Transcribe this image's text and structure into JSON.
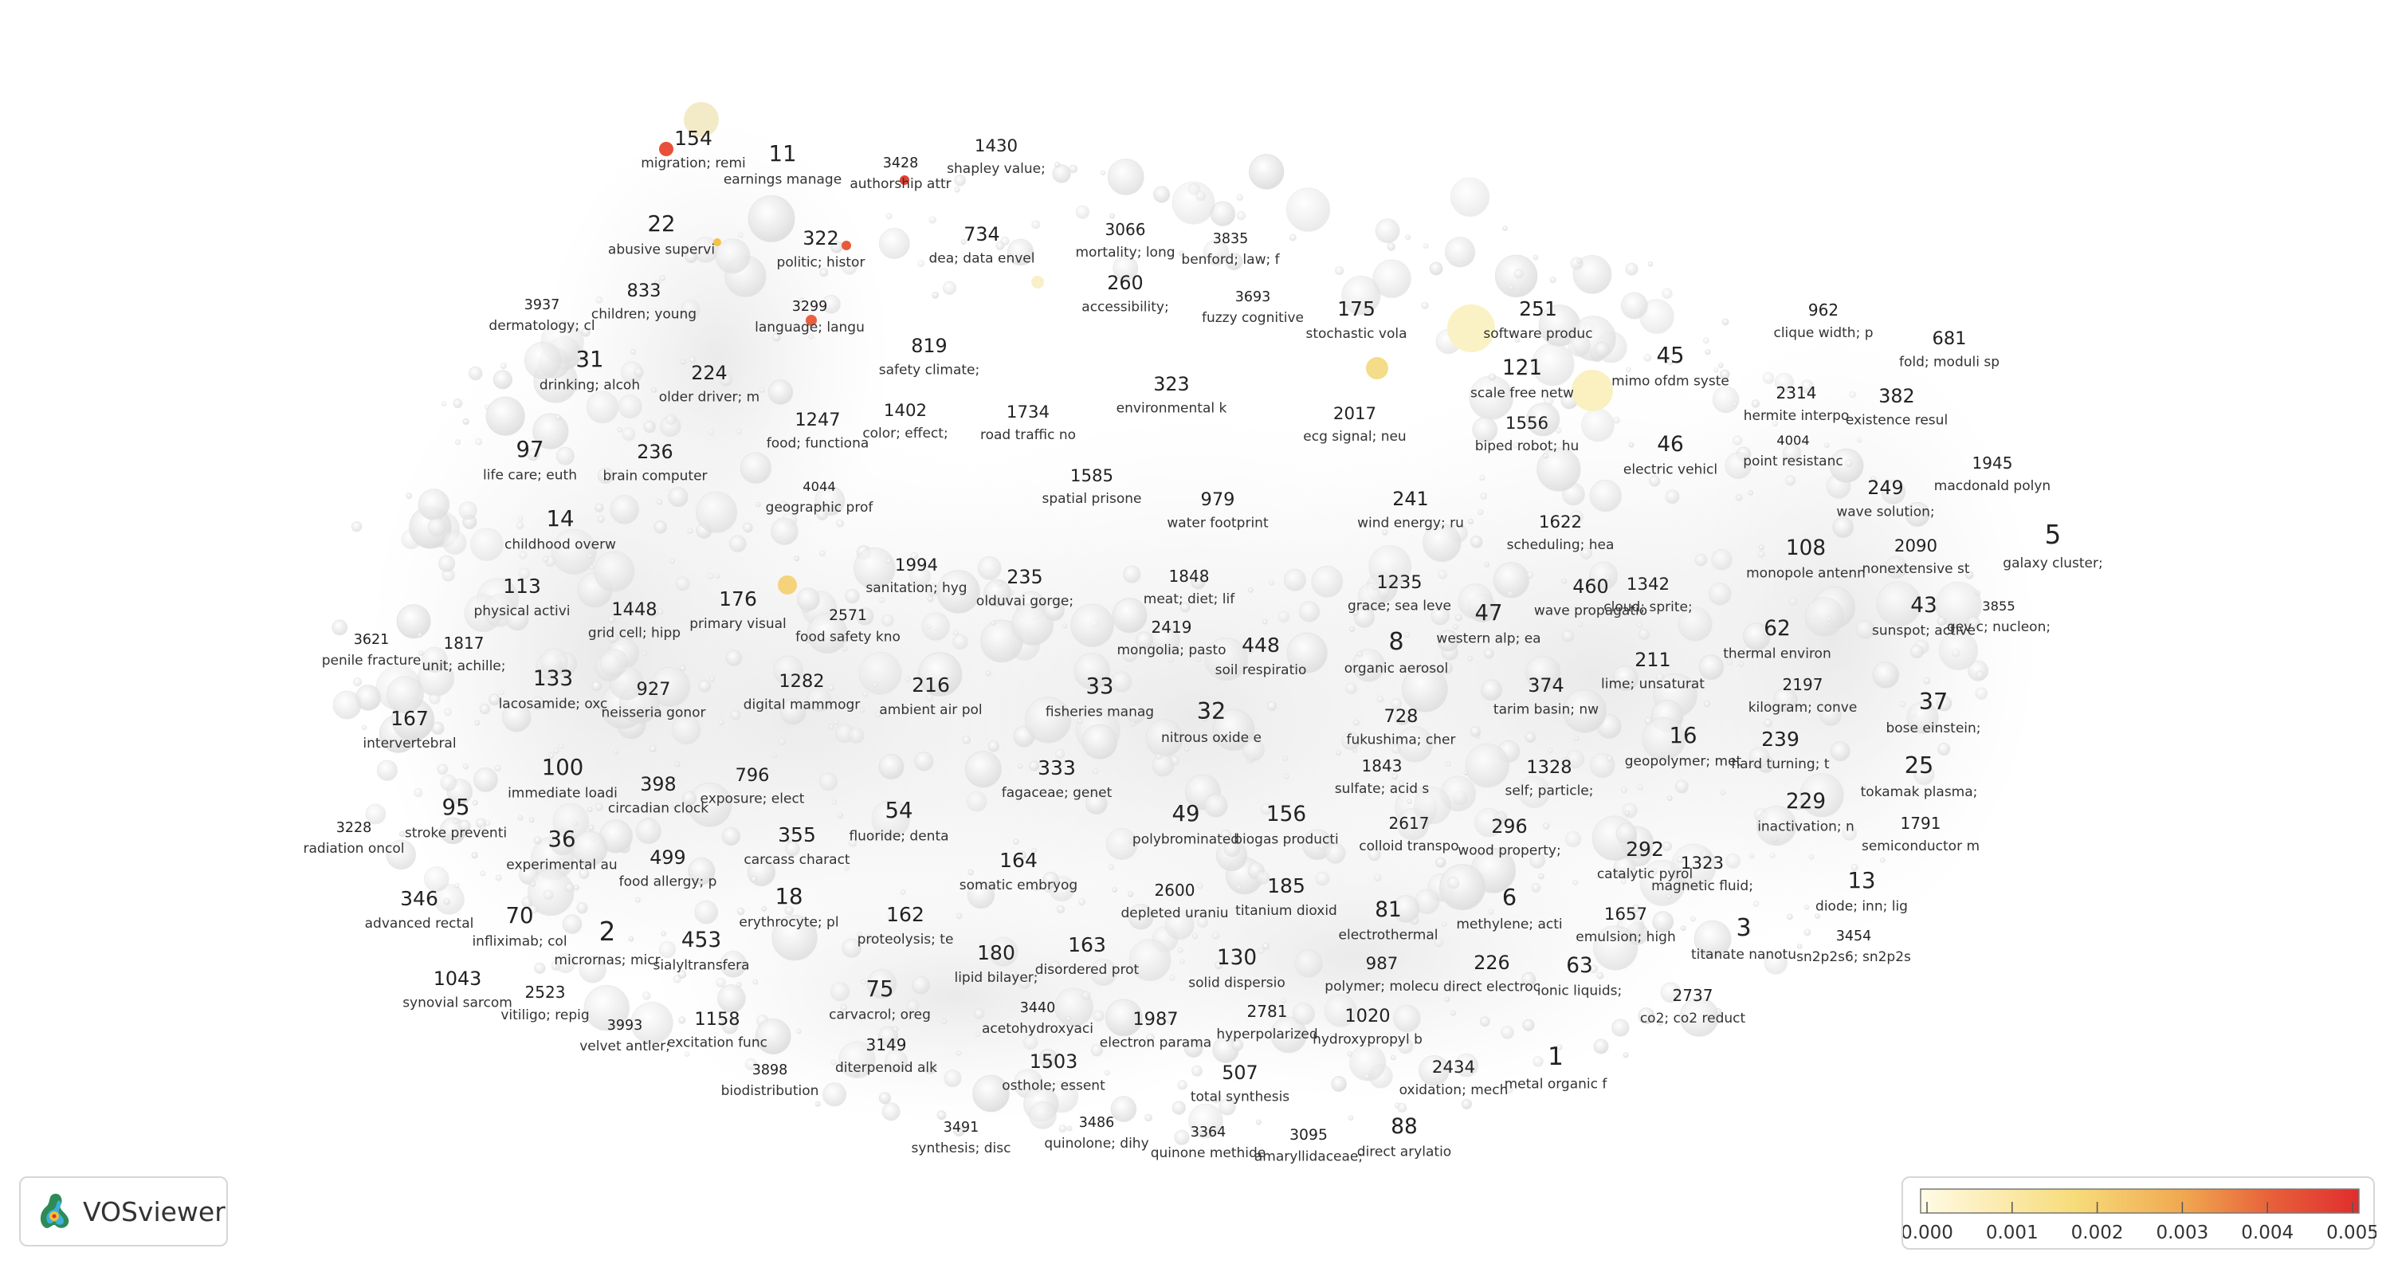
{
  "app": {
    "name": "VOSviewer",
    "icon": "vosviewer-logo-icon"
  },
  "chart_data": {
    "type": "scatter",
    "title": "",
    "xlabel": "",
    "ylabel": "",
    "color_scale": {
      "min": 0.0,
      "max": 0.005,
      "ticks": [
        "0.000",
        "0.001",
        "0.002",
        "0.003",
        "0.004",
        "0.005"
      ],
      "colors": [
        "#fffbe6",
        "#f7dc7a",
        "#f0a850",
        "#e8603a",
        "#e02d2d"
      ]
    },
    "clusters": [
      {
        "id": "154",
        "label": "migration; remi"
      },
      {
        "id": "11",
        "label": "earnings manage"
      },
      {
        "id": "3428",
        "label": "authorship attr"
      },
      {
        "id": "1430",
        "label": "shapley value;"
      },
      {
        "id": "22",
        "label": "abusive supervi"
      },
      {
        "id": "322",
        "label": "politic; histor"
      },
      {
        "id": "734",
        "label": "dea; data envel"
      },
      {
        "id": "3066",
        "label": "mortality; long"
      },
      {
        "id": "3835",
        "label": "benford; law; f"
      },
      {
        "id": "833",
        "label": "children; young"
      },
      {
        "id": "3937",
        "label": "dermatology; cl"
      },
      {
        "id": "3299",
        "label": "language; langu"
      },
      {
        "id": "260",
        "label": "accessibility;"
      },
      {
        "id": "3693",
        "label": "fuzzy cognitive"
      },
      {
        "id": "175",
        "label": "stochastic vola"
      },
      {
        "id": "251",
        "label": "software produc"
      },
      {
        "id": "962",
        "label": "clique width; p"
      },
      {
        "id": "681",
        "label": "fold; moduli sp"
      },
      {
        "id": "31",
        "label": "drinking; alcoh"
      },
      {
        "id": "224",
        "label": "older driver; m"
      },
      {
        "id": "819",
        "label": "safety climate;"
      },
      {
        "id": "323",
        "label": "environmental k"
      },
      {
        "id": "121",
        "label": "scale free netw"
      },
      {
        "id": "45",
        "label": "mimo ofdm syste"
      },
      {
        "id": "2314",
        "label": "hermite interpo"
      },
      {
        "id": "382",
        "label": "existence resul"
      },
      {
        "id": "1247",
        "label": "food; functiona"
      },
      {
        "id": "1402",
        "label": "color; effect;"
      },
      {
        "id": "1734",
        "label": "road traffic no"
      },
      {
        "id": "2017",
        "label": "ecg signal; neu"
      },
      {
        "id": "1556",
        "label": "biped robot; hu"
      },
      {
        "id": "4004",
        "label": "point resistanc"
      },
      {
        "id": "97",
        "label": "life care; euth"
      },
      {
        "id": "236",
        "label": "brain computer"
      },
      {
        "id": "46",
        "label": "electric vehicl"
      },
      {
        "id": "1945",
        "label": "macdonald polyn"
      },
      {
        "id": "4044",
        "label": "geographic prof"
      },
      {
        "id": "1585",
        "label": "spatial prisone"
      },
      {
        "id": "979",
        "label": "water footprint"
      },
      {
        "id": "241",
        "label": "wind energy; ru"
      },
      {
        "id": "249",
        "label": "wave solution;"
      },
      {
        "id": "14",
        "label": "childhood overw"
      },
      {
        "id": "1622",
        "label": "scheduling; hea"
      },
      {
        "id": "5",
        "label": "galaxy cluster;"
      },
      {
        "id": "108",
        "label": "monopole antenn"
      },
      {
        "id": "2090",
        "label": "nonextensive st"
      },
      {
        "id": "1994",
        "label": "sanitation; hyg"
      },
      {
        "id": "235",
        "label": "olduvai gorge;"
      },
      {
        "id": "1848",
        "label": "meat; diet; lif"
      },
      {
        "id": "1235",
        "label": "grace; sea leve"
      },
      {
        "id": "113",
        "label": "physical activi"
      },
      {
        "id": "176",
        "label": "primary visual"
      },
      {
        "id": "1448",
        "label": "grid cell; hipp"
      },
      {
        "id": "2571",
        "label": "food safety kno"
      },
      {
        "id": "460",
        "label": "wave propagatio"
      },
      {
        "id": "1342",
        "label": "cloud; sprite;"
      },
      {
        "id": "3855",
        "label": "gev c; nucleon;"
      },
      {
        "id": "43",
        "label": "sunspot; active"
      },
      {
        "id": "2419",
        "label": "mongolia; pasto"
      },
      {
        "id": "47",
        "label": "western alp; ea"
      },
      {
        "id": "3621",
        "label": "penile fracture"
      },
      {
        "id": "1817",
        "label": "unit; achille;"
      },
      {
        "id": "448",
        "label": "soil respiratio"
      },
      {
        "id": "8",
        "label": "organic aerosol"
      },
      {
        "id": "62",
        "label": "thermal environ"
      },
      {
        "id": "133",
        "label": "lacosamide; oxc"
      },
      {
        "id": "927",
        "label": "neisseria gonor"
      },
      {
        "id": "1282",
        "label": "digital mammogr"
      },
      {
        "id": "216",
        "label": "ambient air pol"
      },
      {
        "id": "33",
        "label": "fisheries manag"
      },
      {
        "id": "374",
        "label": "tarim basin; nw"
      },
      {
        "id": "211",
        "label": "lime; unsaturat"
      },
      {
        "id": "2197",
        "label": "kilogram; conve"
      },
      {
        "id": "37",
        "label": "bose einstein;"
      },
      {
        "id": "167",
        "label": "intervertebral"
      },
      {
        "id": "32",
        "label": "nitrous oxide e"
      },
      {
        "id": "728",
        "label": "fukushima; cher"
      },
      {
        "id": "16",
        "label": "geopolymer; met"
      },
      {
        "id": "239",
        "label": "hard turning; t"
      },
      {
        "id": "796",
        "label": "exposure; elect"
      },
      {
        "id": "333",
        "label": "fagaceae; genet"
      },
      {
        "id": "1843",
        "label": "sulfate; acid s"
      },
      {
        "id": "1328",
        "label": "self; particle;"
      },
      {
        "id": "25",
        "label": "tokamak plasma;"
      },
      {
        "id": "100",
        "label": "immediate loadi"
      },
      {
        "id": "398",
        "label": "circadian clock"
      },
      {
        "id": "54",
        "label": "fluoride; denta"
      },
      {
        "id": "49",
        "label": "polybrominated"
      },
      {
        "id": "156",
        "label": "biogas producti"
      },
      {
        "id": "229",
        "label": "inactivation; n"
      },
      {
        "id": "95",
        "label": "stroke preventi"
      },
      {
        "id": "2617",
        "label": "colloid transpo"
      },
      {
        "id": "296",
        "label": "wood property;"
      },
      {
        "id": "1791",
        "label": "semiconductor m"
      },
      {
        "id": "3228",
        "label": "radiation oncol"
      },
      {
        "id": "36",
        "label": "experimental au"
      },
      {
        "id": "355",
        "label": "carcass charact"
      },
      {
        "id": "292",
        "label": "catalytic pyrol"
      },
      {
        "id": "499",
        "label": "food allergy; p"
      },
      {
        "id": "164",
        "label": "somatic embryog"
      },
      {
        "id": "1323",
        "label": "magnetic fluid;"
      },
      {
        "id": "13",
        "label": "diode; inn; lig"
      },
      {
        "id": "346",
        "label": "advanced rectal"
      },
      {
        "id": "18",
        "label": "erythrocyte; pl"
      },
      {
        "id": "2600",
        "label": "depleted uraniu"
      },
      {
        "id": "185",
        "label": "titanium dioxid"
      },
      {
        "id": "6",
        "label": "methylene; acti"
      },
      {
        "id": "70",
        "label": "infliximab; col"
      },
      {
        "id": "162",
        "label": "proteolysis; te"
      },
      {
        "id": "81",
        "label": "electrothermal"
      },
      {
        "id": "1657",
        "label": "emulsion; high"
      },
      {
        "id": "3",
        "label": "titanate nanotu"
      },
      {
        "id": "3454",
        "label": "sn2p2s6; sn2p2s"
      },
      {
        "id": "2",
        "label": "micrornas; micr"
      },
      {
        "id": "453",
        "label": "sialyltransfera"
      },
      {
        "id": "180",
        "label": "lipid bilayer;"
      },
      {
        "id": "163",
        "label": "disordered prot"
      },
      {
        "id": "130",
        "label": "solid dispersio"
      },
      {
        "id": "987",
        "label": "polymer; molecu"
      },
      {
        "id": "226",
        "label": "direct electroc"
      },
      {
        "id": "63",
        "label": "ionic liquids;"
      },
      {
        "id": "1043",
        "label": "synovial sarcom"
      },
      {
        "id": "2523",
        "label": "vitiligo; repig"
      },
      {
        "id": "75",
        "label": "carvacrol; oreg"
      },
      {
        "id": "2737",
        "label": "co2; co2 reduct"
      },
      {
        "id": "3440",
        "label": "acetohydroxyaci"
      },
      {
        "id": "1987",
        "label": "electron parama"
      },
      {
        "id": "2781",
        "label": "hyperpolarized"
      },
      {
        "id": "1020",
        "label": "hydroxypropyl b"
      },
      {
        "id": "3993",
        "label": "velvet antler;"
      },
      {
        "id": "1158",
        "label": "excitation func"
      },
      {
        "id": "3149",
        "label": "diterpenoid alk"
      },
      {
        "id": "1",
        "label": "metal organic f"
      },
      {
        "id": "1503",
        "label": "osthole; essent"
      },
      {
        "id": "507",
        "label": "total synthesis"
      },
      {
        "id": "2434",
        "label": "oxidation; mech"
      },
      {
        "id": "3898",
        "label": "biodistribution"
      },
      {
        "id": "3491",
        "label": "synthesis; disc"
      },
      {
        "id": "3486",
        "label": "quinolone; dihy"
      },
      {
        "id": "3364",
        "label": "quinone methide"
      },
      {
        "id": "3095",
        "label": "amaryllidaceae;"
      },
      {
        "id": "88",
        "label": "direct arylatio"
      }
    ]
  }
}
